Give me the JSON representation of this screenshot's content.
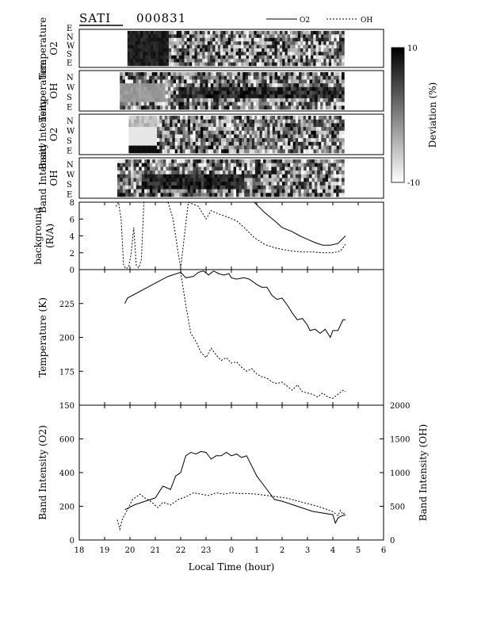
{
  "header": {
    "instrument": "SATI",
    "date": "000831",
    "legend_o2": "O2",
    "legend_oh": "OH"
  },
  "strip_panels": [
    {
      "ylabel_lines": [
        "Temperature",
        "O2"
      ],
      "dir_labels": [
        "E",
        "N",
        "W",
        "S",
        "E"
      ]
    },
    {
      "ylabel_lines": [
        "Temperature",
        "OH"
      ],
      "dir_labels": [
        "N",
        "W",
        "S",
        "E"
      ]
    },
    {
      "ylabel_lines": [
        "Band Intensity",
        "O2"
      ],
      "dir_labels": [
        "N",
        "W",
        "S",
        "E"
      ]
    },
    {
      "ylabel_lines": [
        "Band Intensity",
        "OH"
      ],
      "dir_labels": [
        "N",
        "W",
        "S",
        "E"
      ]
    }
  ],
  "colorbar": {
    "label": "Deviation (%)",
    "max": "10",
    "min": "-10"
  },
  "chart_data": [
    {
      "type": "line",
      "ylabel_lines": [
        "background",
        "(R/A)"
      ],
      "ylim": [
        0,
        8
      ],
      "yticks": [
        "0",
        "2",
        "4",
        "6",
        "8"
      ],
      "xlim": [
        18,
        30
      ],
      "series": [
        {
          "name": "O2",
          "x": [
            19.8,
            20.8,
            21.6,
            22.0,
            22.5,
            22.9,
            23.3,
            23.7,
            24.0,
            24.3,
            24.6,
            24.9,
            25.3,
            25.7,
            26.0,
            26.4,
            26.7,
            27.0,
            27.3,
            27.6,
            27.9,
            28.2,
            28.5
          ],
          "y": [
            8.0,
            8.0,
            8.0,
            8.0,
            8.0,
            8.0,
            8.0,
            8.0,
            8.0,
            8.0,
            8.0,
            8.0,
            6.8,
            5.8,
            5.0,
            4.5,
            4.0,
            3.6,
            3.2,
            2.9,
            2.9,
            3.1,
            4.0
          ]
        },
        {
          "name": "OH",
          "x": [
            19.45,
            19.55,
            19.65,
            19.75,
            19.85,
            19.95,
            20.05,
            20.15,
            20.25,
            20.35,
            20.45,
            20.55,
            20.7,
            21.5,
            21.7,
            21.9,
            22.0,
            22.3,
            22.7,
            23.0,
            23.2,
            23.5,
            23.8,
            24.2,
            24.5,
            24.9,
            25.3,
            25.7,
            26.0,
            26.4,
            26.8,
            27.2,
            27.6,
            28.0,
            28.3,
            28.5
          ],
          "y": [
            7.5,
            8.0,
            6.0,
            0.5,
            0.1,
            0.3,
            2.0,
            5.0,
            0.5,
            0.2,
            1.2,
            8.0,
            8.0,
            8.0,
            6.0,
            2.0,
            0.2,
            8.0,
            7.5,
            6.0,
            7.0,
            6.6,
            6.3,
            5.8,
            5.0,
            3.8,
            3.0,
            2.6,
            2.4,
            2.2,
            2.1,
            2.1,
            2.0,
            2.0,
            2.2,
            3.0
          ]
        }
      ]
    },
    {
      "type": "line",
      "ylabel": "Temperature (K)",
      "ylim": [
        150,
        250
      ],
      "yticks": [
        "150",
        "175",
        "200",
        "225"
      ],
      "xlim": [
        18,
        30
      ],
      "series": [
        {
          "name": "O2",
          "x": [
            19.8,
            19.9,
            21.0,
            21.5,
            22.0,
            22.1,
            22.2,
            22.5,
            22.7,
            22.9,
            23.1,
            23.3,
            23.5,
            23.7,
            23.9,
            24.0,
            24.2,
            24.5,
            24.7,
            25.0,
            25.2,
            25.4,
            25.6,
            25.8,
            26.0,
            26.2,
            26.4,
            26.6,
            26.8,
            27.0,
            27.1,
            27.3,
            27.5,
            27.7,
            27.9,
            28.0,
            28.2,
            28.4,
            28.5
          ],
          "y": [
            225,
            229,
            240,
            245,
            248,
            246,
            244,
            245,
            248,
            249,
            246,
            249,
            247,
            246,
            247,
            244,
            243,
            244,
            243,
            239,
            237,
            237,
            231,
            228,
            229,
            224,
            218,
            213,
            214,
            209,
            205,
            206,
            203,
            206,
            200,
            205,
            205,
            213,
            213
          ]
        },
        {
          "name": "OH",
          "x": [
            22.0,
            22.2,
            22.4,
            22.6,
            22.8,
            23.0,
            23.2,
            23.4,
            23.6,
            23.8,
            24.0,
            24.2,
            24.4,
            24.6,
            24.8,
            25.0,
            25.2,
            25.4,
            25.6,
            25.8,
            26.0,
            26.2,
            26.4,
            26.6,
            26.8,
            27.0,
            27.2,
            27.4,
            27.6,
            27.8,
            28.0,
            28.2,
            28.4,
            28.5
          ],
          "y": [
            248,
            224,
            203,
            197,
            189,
            185,
            192,
            187,
            183,
            185,
            181,
            182,
            178,
            175,
            177,
            173,
            171,
            170,
            167,
            166,
            167,
            164,
            161,
            165,
            160,
            159,
            158,
            156,
            159,
            156,
            155,
            158,
            161,
            160
          ]
        }
      ]
    },
    {
      "type": "line",
      "ylabel": "Band Intensity (O2)",
      "ylabel_right": "Band Intensity (OH)",
      "xlabel": "Local Time (hour)",
      "ylim": [
        0,
        800
      ],
      "yticks": [
        "0",
        "200",
        "400",
        "600"
      ],
      "ylim_right": [
        0,
        2000
      ],
      "yticks_right": [
        "0",
        "500",
        "1000",
        "1500",
        "2000"
      ],
      "xlim": [
        18,
        30
      ],
      "xticks": [
        "18",
        "19",
        "20",
        "21",
        "22",
        "23",
        "0",
        "1",
        "2",
        "3",
        "4",
        "5",
        "6"
      ],
      "series": [
        {
          "name": "O2",
          "axis": "left",
          "x": [
            19.8,
            20.2,
            20.6,
            21.0,
            21.3,
            21.6,
            21.8,
            22.0,
            22.2,
            22.4,
            22.6,
            22.8,
            23.0,
            23.2,
            23.4,
            23.6,
            23.8,
            24.0,
            24.2,
            24.4,
            24.6,
            24.8,
            25.0,
            25.3,
            25.7,
            26.0,
            26.4,
            26.8,
            27.2,
            27.6,
            28.0,
            28.1,
            28.2,
            28.3,
            28.5
          ],
          "y": [
            180,
            210,
            230,
            250,
            320,
            300,
            380,
            400,
            500,
            520,
            510,
            525,
            520,
            480,
            500,
            500,
            520,
            500,
            510,
            490,
            500,
            440,
            380,
            320,
            240,
            230,
            210,
            190,
            170,
            160,
            150,
            100,
            130,
            140,
            150
          ]
        },
        {
          "name": "OH",
          "axis": "right",
          "x": [
            19.5,
            19.6,
            19.7,
            19.9,
            20.1,
            20.4,
            20.6,
            20.8,
            21.1,
            21.3,
            21.6,
            21.9,
            22.2,
            22.5,
            22.8,
            23.1,
            23.4,
            23.7,
            24.0,
            24.3,
            24.6,
            25.0,
            25.4,
            25.8,
            26.2,
            26.6,
            27.0,
            27.4,
            27.8,
            28.0,
            28.2,
            28.3,
            28.4,
            28.5
          ],
          "y": [
            300,
            160,
            310,
            450,
            600,
            680,
            620,
            580,
            480,
            560,
            520,
            600,
            640,
            700,
            680,
            660,
            700,
            680,
            700,
            690,
            690,
            680,
            660,
            640,
            620,
            580,
            540,
            500,
            450,
            420,
            360,
            440,
            380,
            420
          ]
        }
      ]
    }
  ]
}
